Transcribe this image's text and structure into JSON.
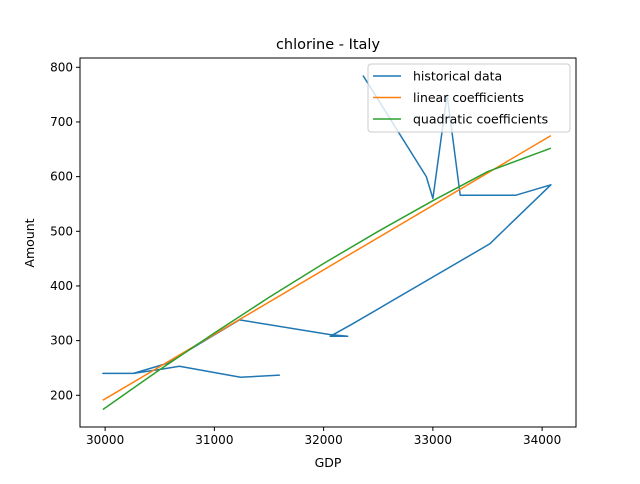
{
  "chart_data": {
    "type": "line",
    "title": "chlorine - Italy",
    "xlabel": "GDP",
    "ylabel": "Amount",
    "xlim": [
      29770,
      34310
    ],
    "ylim": [
      142,
      817
    ],
    "xticks": [
      30000,
      31000,
      32000,
      33000,
      34000
    ],
    "yticks": [
      200,
      300,
      400,
      500,
      600,
      700,
      800
    ],
    "legend_position": "upper right",
    "grid": false,
    "series": [
      {
        "name": "historical data",
        "color": "#1f77b4",
        "x": [
          31600,
          31240,
          30680,
          30520,
          30260,
          29980,
          30260,
          30560,
          31230,
          32060,
          32220,
          32060,
          32260,
          33520,
          34080,
          33760,
          33250,
          33130,
          33000,
          32940,
          32360
        ],
        "y": [
          237,
          233,
          253,
          248,
          240,
          240,
          240,
          258,
          338,
          311,
          308,
          308,
          330,
          477,
          585,
          566,
          566,
          750,
          560,
          600,
          785
        ]
      },
      {
        "name": "linear coefficients",
        "color": "#ff7f0e",
        "x": [
          29980,
          34080
        ],
        "y": [
          191,
          675
        ]
      },
      {
        "name": "quadratic coefficients",
        "color": "#2ca02c",
        "x": [
          29980,
          30500,
          31000,
          31500,
          32000,
          32500,
          33000,
          33500,
          34080
        ],
        "y": [
          174,
          247,
          314,
          379,
          441,
          500,
          556,
          609,
          652
        ]
      }
    ]
  }
}
